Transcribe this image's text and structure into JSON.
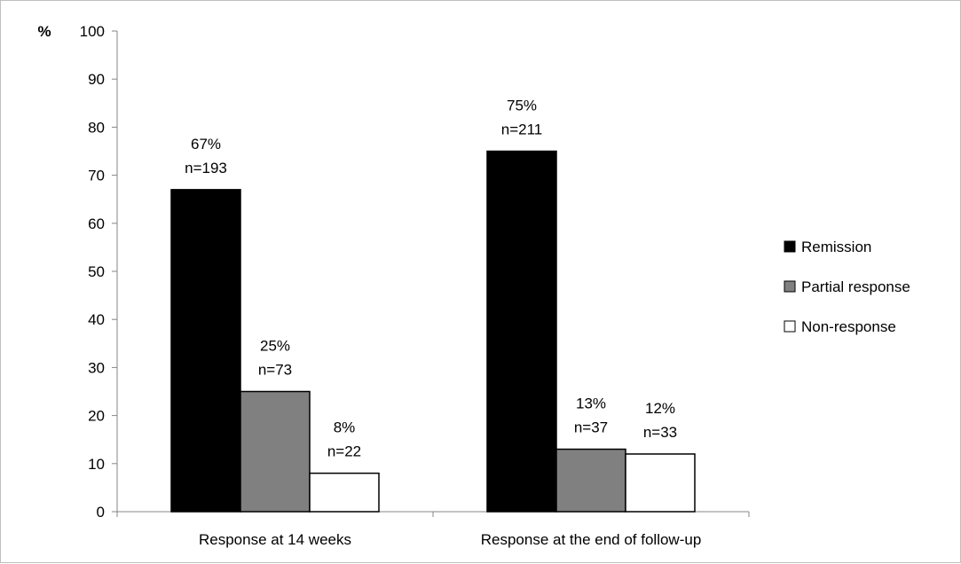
{
  "chart_data": {
    "type": "bar",
    "categories": [
      "Response at 14 weeks",
      "Response at the end of follow-up"
    ],
    "series": [
      {
        "name": "Remission",
        "values": [
          67,
          75
        ],
        "labels": [
          "67%",
          "75%"
        ],
        "n": [
          "n=193",
          "n=211"
        ],
        "color": "#000000"
      },
      {
        "name": "Partial response",
        "values": [
          25,
          13
        ],
        "labels": [
          "25%",
          "13%"
        ],
        "n": [
          "n=73",
          "n=37"
        ],
        "color": "#808080"
      },
      {
        "name": "Non-response",
        "values": [
          8,
          12
        ],
        "labels": [
          "8%",
          "12%"
        ],
        "n": [
          "n=22",
          "n=33"
        ],
        "color": "#ffffff"
      }
    ],
    "ylabel": "%",
    "ylim": [
      0,
      100
    ],
    "yticks": [
      "0",
      "10",
      "20",
      "30",
      "40",
      "50",
      "60",
      "70",
      "80",
      "90",
      "100"
    ],
    "grid": false,
    "legend_position": "right"
  }
}
